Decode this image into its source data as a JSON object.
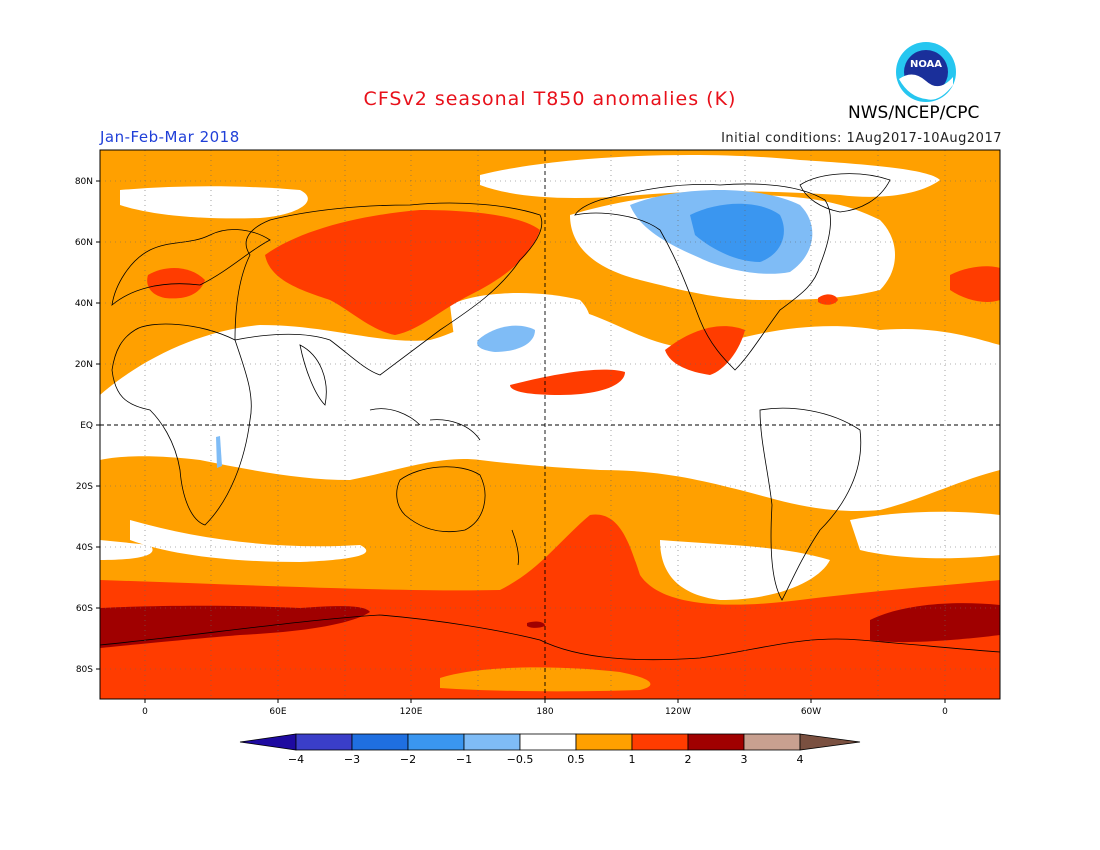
{
  "header": {
    "title": "CFSv2 seasonal T850 anomalies (K)",
    "season": "Jan-Feb-Mar 2018",
    "initial_conditions": "Initial conditions: 1Aug2017-10Aug2017",
    "agency": "NWS/NCEP/CPC",
    "logo_text": "NOAA"
  },
  "colors": {
    "title": "#e8101a",
    "season": "#1f3fd8",
    "anom_lt_m4": "#1e0aa0",
    "anom_m4_m3": "#3a3ec8",
    "anom_m3_m2": "#1f6fe0",
    "anom_m2_m1": "#3a96f0",
    "anom_m1_m05": "#7fbcf6",
    "neutral": "#ffffff",
    "anom_05_1": "#ffa000",
    "anom_1_2": "#ff3c00",
    "anom_2_3": "#a00000",
    "anom_3_4": "#c8a090",
    "anom_gt_4": "#7a5040"
  },
  "map": {
    "lat_labels": [
      "80N",
      "60N",
      "40N",
      "20N",
      "EQ",
      "20S",
      "40S",
      "60S",
      "80S"
    ],
    "lon_labels": [
      "0",
      "60E",
      "120E",
      "180",
      "120W",
      "60W",
      "0"
    ]
  },
  "colorbar": {
    "labels": [
      "−4",
      "−3",
      "−2",
      "−1",
      "−0.5",
      "0.5",
      "1",
      "2",
      "3",
      "4"
    ]
  }
}
